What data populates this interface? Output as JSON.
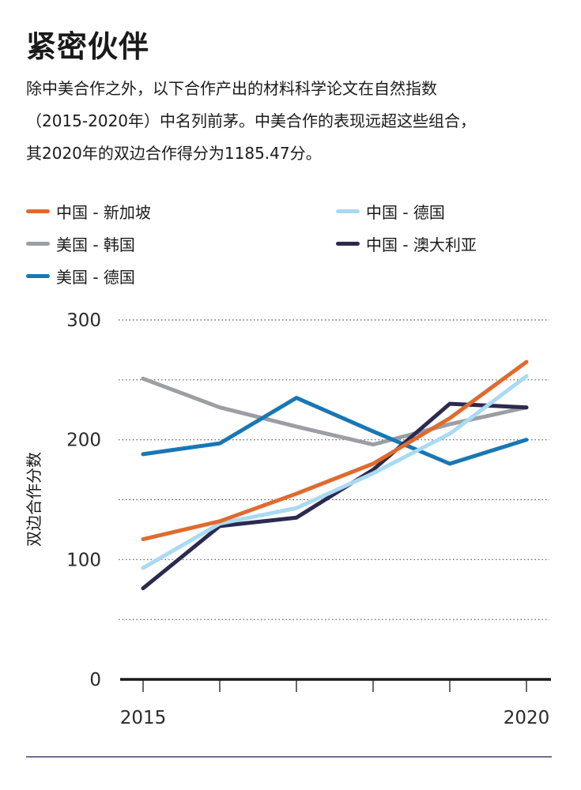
{
  "header": {
    "title": "紧密伙伴",
    "subtitle_lines": [
      "除中美合作之外，以下合作产出的材料科学论文在自然指数",
      "（2015-2020年）中名列前茅。中美合作的表现远超这些组合，",
      "其2020年的双边合作得分为1185.47分。"
    ]
  },
  "legend": [
    {
      "label": "中国 - 新加坡",
      "color": "#e06a2e"
    },
    {
      "label": "中国 - 德国",
      "color": "#a8daf3"
    },
    {
      "label": "美国 - 韩国",
      "color": "#9b9ea2"
    },
    {
      "label": "中国 - 澳大利亚",
      "color": "#2c2a4e"
    },
    {
      "label": "美国 - 德国",
      "color": "#1877b4"
    }
  ],
  "chart_data": {
    "type": "line",
    "title": "紧密伙伴",
    "xlabel": "",
    "ylabel": "双边合作分数",
    "x": [
      2015,
      2016,
      2017,
      2018,
      2019,
      2020
    ],
    "x_tick_labels": [
      "2015",
      "",
      "",
      "",
      "",
      "2020"
    ],
    "ylim": [
      0,
      300
    ],
    "y_ticks": [
      0,
      100,
      200,
      300
    ],
    "grid": "dotted horizontal every 50",
    "series": [
      {
        "name": "美国 - 韩国",
        "color": "#9b9ea2",
        "values": [
          251,
          227,
          211,
          196,
          213,
          227
        ]
      },
      {
        "name": "美国 - 德国",
        "color": "#1877b4",
        "values": [
          188,
          197,
          235,
          207,
          180,
          200
        ]
      },
      {
        "name": "中国 - 澳大利亚",
        "color": "#2c2a4e",
        "values": [
          76,
          128,
          135,
          175,
          230,
          227
        ]
      },
      {
        "name": "中国 - 德国",
        "color": "#a8daf3",
        "values": [
          93,
          130,
          143,
          172,
          205,
          253
        ]
      },
      {
        "name": "中国 - 新加坡",
        "color": "#e06a2e",
        "values": [
          117,
          132,
          155,
          180,
          218,
          265
        ]
      }
    ]
  }
}
